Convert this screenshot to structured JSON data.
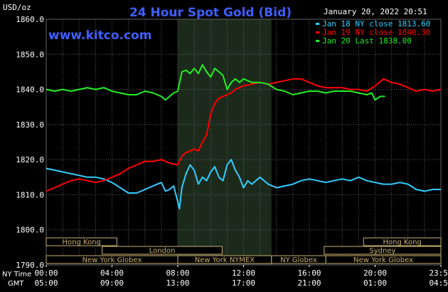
{
  "header": {
    "unit_label": "USD/oz",
    "title": "24 Hour Spot Gold (Bid)",
    "datetime": "January 20, 2022 20:51",
    "brand": "www.kitco.com"
  },
  "colors": {
    "background": "#000000",
    "plot_area": "#000000",
    "highlight": "#1c2a1c",
    "grid": "#606060",
    "title": "#3f5fff",
    "brand": "#3f5fff",
    "text": "#ffffff",
    "jan18": "#33ccff",
    "jan19": "#ff0000",
    "jan20": "#22ee22",
    "session_fill": "#000000",
    "session_border": "#c8b070",
    "session_text": "#c8b070"
  },
  "axis_left_labels": {
    "row1": "NY Time",
    "row2": "GMT"
  },
  "sessions": [
    {
      "label": "Hong Kong",
      "row": 0,
      "start_h": 0.0,
      "end_h": 4.3
    },
    {
      "label": "Hong Kong",
      "row": 0,
      "start_h": 19.3,
      "end_h": 24.0
    },
    {
      "label": "London",
      "row": 1,
      "start_h": 3.4,
      "end_h": 10.7
    },
    {
      "label": "Sydney",
      "row": 1,
      "start_h": 16.9,
      "end_h": 24.0
    },
    {
      "label": "New York Globex",
      "row": 2,
      "start_h": 0.0,
      "end_h": 8.0
    },
    {
      "label": "New York NYMEX",
      "row": 2,
      "start_h": 8.0,
      "end_h": 13.7
    },
    {
      "label": "NY Globex",
      "row": 2,
      "start_h": 13.7,
      "end_h": 17.0
    },
    {
      "label": "New York Globex",
      "row": 2,
      "start_h": 17.0,
      "end_h": 24.0
    }
  ],
  "chart_data": {
    "type": "line",
    "title": "24 Hour Spot Gold (Bid)",
    "ylabel": "USD/oz",
    "ylim": [
      1790,
      1860
    ],
    "yticks": [
      1790,
      1800,
      1810,
      1820,
      1830,
      1840,
      1850,
      1860
    ],
    "ytick_labels": [
      "1790.0",
      "1800.0",
      "1810.0",
      "1820.0",
      "1830.0",
      "1840.0",
      "1850.0",
      "1860.0"
    ],
    "xlim": [
      0,
      24
    ],
    "xticks": [
      0,
      4,
      8,
      12,
      16,
      20,
      24
    ],
    "xtick_labels_ny": [
      "00:00",
      "04:00",
      "08:00",
      "12:00",
      "16:00",
      "20:00",
      "23:59"
    ],
    "xtick_labels_gmt": [
      "05:00",
      "09:00",
      "13:00",
      "17:00",
      "21:00",
      "01:00",
      "04:59"
    ],
    "highlight_range": [
      8.0,
      13.7
    ],
    "grid": true,
    "legend_position": "top-right",
    "series": [
      {
        "name": "Jan 18 NY close 1813.60",
        "color": "#33ccff",
        "x": [
          0,
          0.5,
          1,
          1.5,
          2,
          2.5,
          3,
          3.5,
          4,
          4.5,
          5,
          5.5,
          6,
          6.5,
          7,
          7.25,
          7.5,
          7.75,
          8,
          8.1,
          8.25,
          8.5,
          8.75,
          9,
          9.25,
          9.5,
          9.75,
          10,
          10.25,
          10.5,
          10.75,
          11,
          11.25,
          11.5,
          11.75,
          12,
          12.25,
          12.5,
          12.75,
          13,
          13.5,
          14,
          14.5,
          15,
          15.5,
          16,
          16.5,
          17,
          17.5,
          18,
          18.5,
          19,
          19.5,
          20,
          20.5,
          21,
          21.5,
          22,
          22.5,
          23,
          23.5,
          24
        ],
        "y": [
          1817.5,
          1817,
          1816.5,
          1816,
          1815.5,
          1815,
          1815,
          1814.5,
          1813.5,
          1812,
          1810.5,
          1810.5,
          1811.5,
          1812.5,
          1813.5,
          1811,
          1811.5,
          1812.5,
          1808,
          1806,
          1812,
          1816,
          1818.5,
          1817,
          1813,
          1815,
          1814,
          1816.5,
          1818,
          1815,
          1814,
          1818.5,
          1820,
          1817,
          1815,
          1812,
          1814,
          1813,
          1814,
          1815,
          1813,
          1812,
          1812.5,
          1813,
          1814,
          1814.5,
          1814,
          1813.5,
          1814,
          1814.5,
          1814,
          1815,
          1814,
          1813.5,
          1813,
          1813,
          1813.5,
          1813,
          1811.5,
          1811,
          1811.5,
          1811.5
        ]
      },
      {
        "name": "Jan 19 NY close 1840.30",
        "color": "#ff0000",
        "x": [
          0,
          0.5,
          1,
          1.5,
          2,
          2.5,
          3,
          3.5,
          4,
          4.5,
          5,
          5.5,
          6,
          6.5,
          7,
          7.5,
          8,
          8.25,
          8.5,
          8.75,
          9,
          9.25,
          9.5,
          9.75,
          10,
          10.25,
          10.5,
          10.75,
          11,
          11.25,
          11.5,
          11.75,
          12,
          12.5,
          13,
          13.5,
          14,
          14.5,
          15,
          15.5,
          16,
          16.5,
          17,
          17.5,
          18,
          18.5,
          19,
          19.5,
          20,
          20.5,
          21,
          21.5,
          22,
          22.5,
          23,
          23.5,
          24
        ],
        "y": [
          1811,
          1812,
          1813,
          1814,
          1814.5,
          1814,
          1813.5,
          1814,
          1815,
          1816,
          1817.5,
          1818.5,
          1819.5,
          1819.5,
          1820,
          1819,
          1818.5,
          1821,
          1822,
          1822.5,
          1823,
          1822.5,
          1825,
          1827,
          1833,
          1836,
          1837.5,
          1838,
          1838.5,
          1839,
          1840,
          1840.5,
          1841,
          1841.5,
          1842,
          1841.5,
          1842,
          1842.5,
          1843,
          1843,
          1842,
          1841,
          1840.5,
          1840.5,
          1840.5,
          1840,
          1840,
          1839.5,
          1841,
          1843,
          1842,
          1841.5,
          1840.5,
          1839.5,
          1840,
          1839.5,
          1840
        ]
      },
      {
        "name": "Jan 20 Last 1838.00",
        "color": "#22ee22",
        "x": [
          0,
          0.5,
          1,
          1.5,
          2,
          2.5,
          3,
          3.5,
          4,
          4.5,
          5,
          5.5,
          6,
          6.5,
          7,
          7.25,
          7.5,
          7.75,
          8,
          8.25,
          8.5,
          8.75,
          9,
          9.25,
          9.5,
          9.75,
          10,
          10.25,
          10.5,
          10.75,
          11,
          11.25,
          11.5,
          11.75,
          12,
          12.5,
          13,
          13.5,
          14,
          14.5,
          15,
          15.5,
          16,
          16.5,
          17,
          17.5,
          18,
          18.5,
          19,
          19.5,
          19.8,
          20,
          20.3,
          20.6
        ],
        "y": [
          1840,
          1839.5,
          1840,
          1839.5,
          1840,
          1840.5,
          1840,
          1840.5,
          1839.5,
          1839,
          1838.5,
          1838.5,
          1839.5,
          1839,
          1838,
          1837,
          1838,
          1839,
          1839.5,
          1845,
          1845.5,
          1844.5,
          1846,
          1844.5,
          1847,
          1845,
          1843.5,
          1846,
          1845,
          1844,
          1840,
          1842,
          1843,
          1842,
          1843,
          1842,
          1842,
          1841.5,
          1840,
          1839.5,
          1838.5,
          1839,
          1839.5,
          1839.5,
          1839,
          1839.5,
          1839.5,
          1839.5,
          1839,
          1838.5,
          1839,
          1837,
          1838,
          1838
        ]
      }
    ]
  }
}
